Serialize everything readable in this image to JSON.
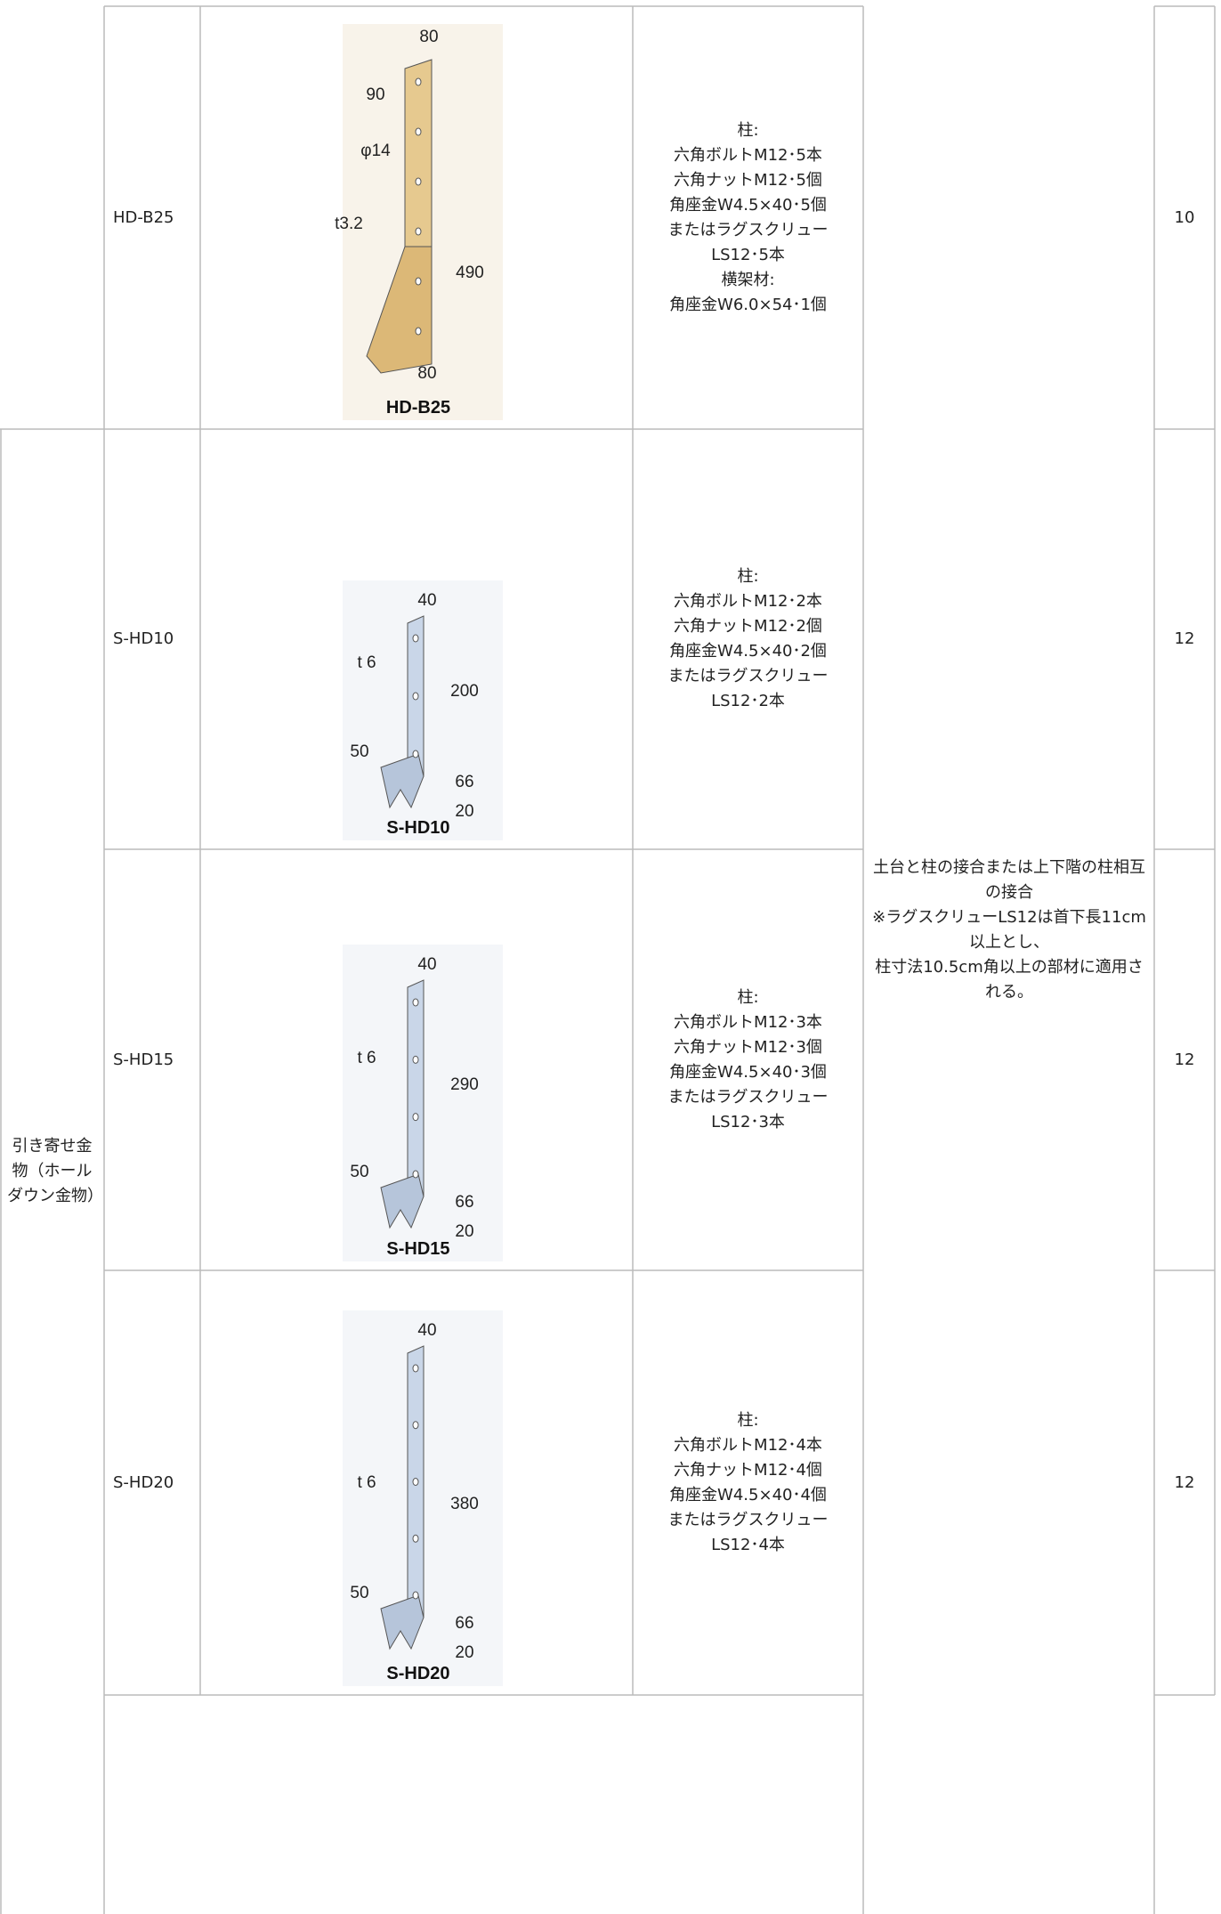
{
  "category": "引き寄せ金物（ホールダウン金物）",
  "description": [
    "土台と柱の接合または上下階の柱相互の接合",
    "※ラグスクリューLS12は首下長11cm以上とし、",
    "柱寸法10.5cm角以上の部材に適用される。"
  ],
  "rows": [
    {
      "code": "HD-B25",
      "figure": {
        "labels": [
          "80",
          "90",
          "φ14",
          "t3.2",
          "490",
          "80"
        ],
        "caption": "HD-B25"
      },
      "fasteners": [
        "柱:",
        "六角ボルトM12･5本",
        "六角ナットM12･5個",
        "角座金W4.5×40･5個",
        "またはラグスクリュー",
        "LS12･5本",
        "横架材:",
        "角座金W6.0×54･1個"
      ],
      "qty": "10"
    },
    {
      "code": "S-HD10",
      "figure": {
        "labels": [
          "40",
          "t 6",
          "200",
          "50",
          "66",
          "20"
        ],
        "caption": "S-HD10"
      },
      "fasteners": [
        "柱:",
        "六角ボルトM12･2本",
        "六角ナットM12･2個",
        "角座金W4.5×40･2個",
        "またはラグスクリュー",
        "LS12･2本"
      ],
      "qty": "12"
    },
    {
      "code": "S-HD15",
      "figure": {
        "labels": [
          "40",
          "t 6",
          "290",
          "50",
          "66",
          "20"
        ],
        "caption": "S-HD15"
      },
      "fasteners": [
        "柱:",
        "六角ボルトM12･3本",
        "六角ナットM12･3個",
        "角座金W4.5×40･3個",
        "またはラグスクリュー",
        "LS12･3本"
      ],
      "qty": "12"
    },
    {
      "code": "S-HD20",
      "figure": {
        "labels": [
          "40",
          "t 6",
          "380",
          "50",
          "66",
          "20"
        ],
        "caption": "S-HD20"
      },
      "fasteners": [
        "柱:",
        "六角ボルトM12･4本",
        "六角ナットM12･4個",
        "角座金W4.5×40･4個",
        "またはラグスクリュー",
        "LS12･4本"
      ],
      "qty": "12"
    }
  ]
}
